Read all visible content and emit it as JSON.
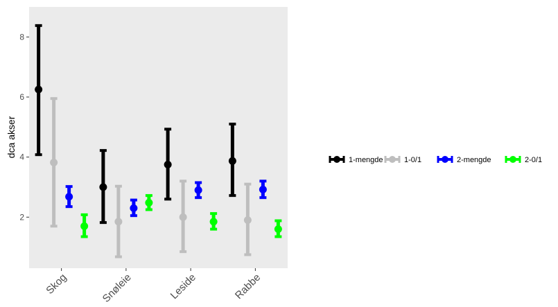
{
  "chart_data": {
    "type": "errorbar",
    "title": "",
    "xlabel": "",
    "ylabel": "dca akser",
    "categories": [
      "Skog",
      "Snøleie",
      "Leside",
      "Rabbe"
    ],
    "ylim": [
      0.3,
      9.0
    ],
    "yticks": [
      2,
      4,
      6,
      8
    ],
    "grid": false,
    "panel_background": "#ebebeb",
    "legend_position": "right",
    "series": [
      {
        "name": "1-mengde",
        "color": "#000000",
        "mean": [
          6.25,
          3.0,
          3.75,
          3.87
        ],
        "lower": [
          4.08,
          1.82,
          2.6,
          2.72
        ],
        "upper": [
          8.38,
          4.22,
          4.93,
          5.1
        ]
      },
      {
        "name": "1-0/1",
        "color": "#bebebe",
        "mean": [
          3.82,
          1.85,
          2.0,
          1.9
        ],
        "lower": [
          1.7,
          0.68,
          0.85,
          0.75
        ],
        "upper": [
          5.95,
          3.03,
          3.2,
          3.1
        ]
      },
      {
        "name": "2-mengde",
        "color": "#0000ff",
        "mean": [
          2.68,
          2.3,
          2.9,
          2.92
        ],
        "lower": [
          2.35,
          2.05,
          2.65,
          2.65
        ],
        "upper": [
          3.02,
          2.57,
          3.15,
          3.2
        ]
      },
      {
        "name": "2-0/1",
        "color": "#00ff00",
        "mean": [
          1.7,
          2.48,
          1.85,
          1.6
        ],
        "lower": [
          1.35,
          2.25,
          1.6,
          1.35
        ],
        "upper": [
          2.08,
          2.72,
          2.12,
          1.88
        ]
      }
    ]
  }
}
